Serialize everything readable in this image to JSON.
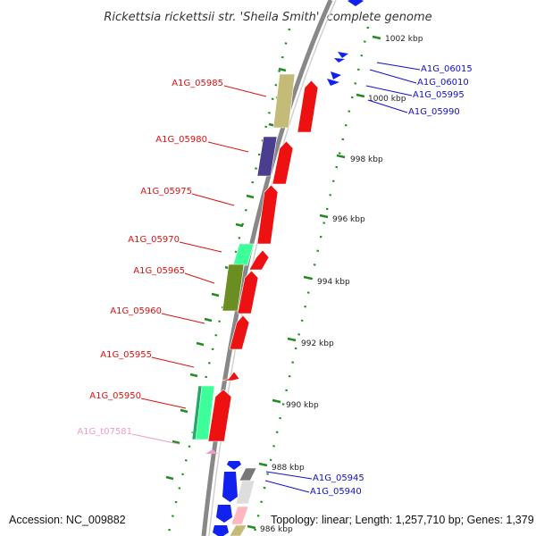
{
  "title": "Rickettsia rickettsii str. 'Sheila Smith', complete genome",
  "accession": "Accession: NC_009882",
  "topology": "Topology: linear; Length: 1,257,710 bp; Genes: 1,379",
  "ticks": [
    "1002 kbp",
    "1000 kbp",
    "998 kbp",
    "996 kbp",
    "994 kbp",
    "992 kbp",
    "990 kbp",
    "988 kbp",
    "986 kbp"
  ],
  "genes_left": [
    "A1G_05985",
    "A1G_05980",
    "A1G_05975",
    "A1G_05970",
    "A1G_05965",
    "A1G_05960",
    "A1G_05955",
    "A1G_05950",
    "A1G_t07581"
  ],
  "genes_right": [
    "A1G_06015",
    "A1G_06010",
    "A1G_05995",
    "A1G_05990",
    "A1G_05945",
    "A1G_05940"
  ],
  "colors": {
    "left_label": "#dd1111",
    "right_label": "#1111cc",
    "trna_label": "#f09ac8",
    "tick_green": "#228b22",
    "backbone": "#888888",
    "forward_cds": "#ee1111",
    "reverse_cds": "#1122ee",
    "olive": "#c3bb77",
    "purple": "#4b3d8f",
    "green_dark": "#6b8e23",
    "mint": "#3dff99",
    "gray": "#777777",
    "light_gray": "#dddddd",
    "pink": "#ffb6c1"
  }
}
